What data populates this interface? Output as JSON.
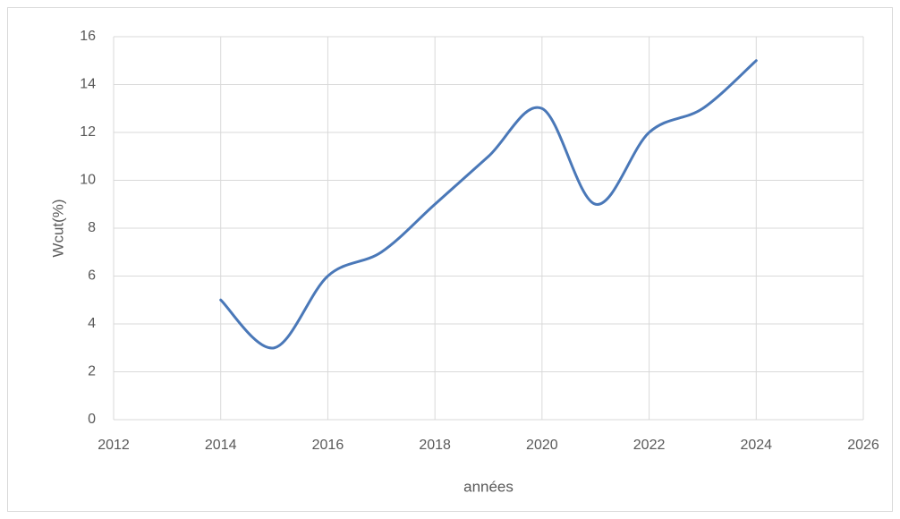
{
  "chart_data": {
    "type": "line",
    "x": [
      2014,
      2015,
      2016,
      2017,
      2018,
      2019,
      2020,
      2021,
      2022,
      2023,
      2024
    ],
    "series": [
      {
        "color": "#4a78b8",
        "values": [
          5,
          3,
          6,
          7,
          9,
          11,
          13,
          9,
          12,
          13,
          15
        ]
      }
    ],
    "xlabel": "années",
    "ylabel": "Wcut(%)",
    "xlim": [
      2012,
      2026
    ],
    "xticks": [
      2012,
      2014,
      2016,
      2018,
      2020,
      2022,
      2024,
      2026
    ],
    "ylim": [
      0,
      16
    ],
    "yticks": [
      0,
      2,
      4,
      6,
      8,
      10,
      12,
      14,
      16
    ],
    "grid": true,
    "smooth": true
  }
}
